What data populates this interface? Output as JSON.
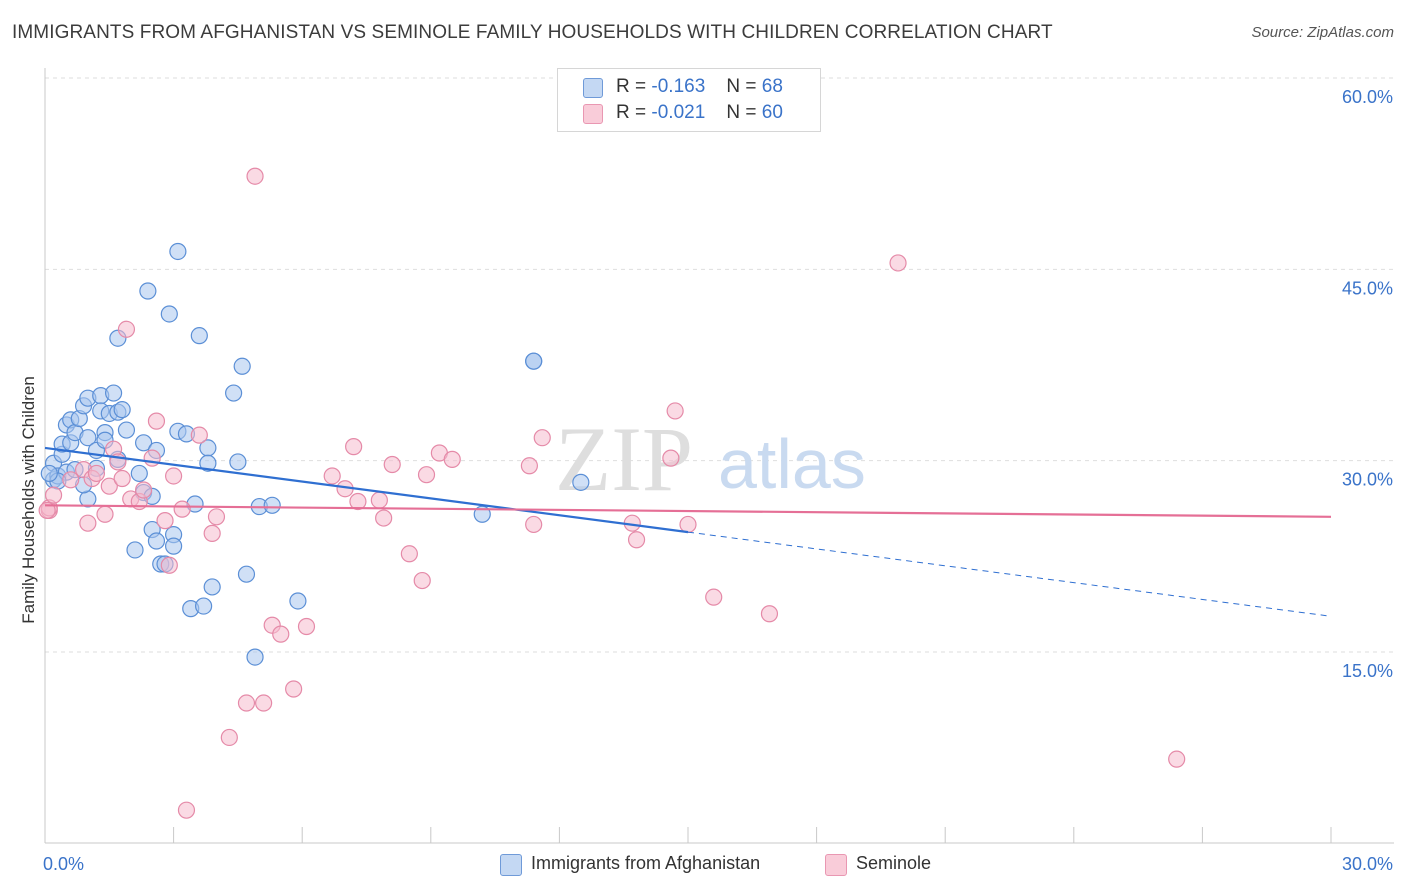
{
  "title": "IMMIGRANTS FROM AFGHANISTAN VS SEMINOLE FAMILY HOUSEHOLDS WITH CHILDREN CORRELATION CHART",
  "source": "Source: ZipAtlas.com",
  "watermark": {
    "zip": "ZIP",
    "atlas": "atlas"
  },
  "legend": {
    "series1": {
      "r_label": "R =",
      "r_value": "-0.163",
      "n_label": "N =",
      "n_value": "68"
    },
    "series2": {
      "r_label": "R =",
      "r_value": "-0.021",
      "n_label": "N =",
      "n_value": "60"
    }
  },
  "colors": {
    "blue_fill": "#a9c7ef",
    "blue_stroke": "#5b8fd6",
    "blue_line": "#2f6fd1",
    "pink_fill": "#f6bccd",
    "pink_stroke": "#e58aa8",
    "pink_line": "#e56f96",
    "tick_label": "#3a73c9"
  },
  "chart_data": {
    "type": "scatter",
    "title": "IMMIGRANTS FROM AFGHANISTAN VS SEMINOLE FAMILY HOUSEHOLDS WITH CHILDREN CORRELATION CHART",
    "xlabel": "",
    "ylabel": "Family Households with Children",
    "x_tick_labels": [
      "0.0%",
      "30.0%"
    ],
    "y_tick_labels": [
      "15.0%",
      "30.0%",
      "45.0%",
      "60.0%"
    ],
    "y_ticks": [
      15,
      30,
      45,
      60
    ],
    "xlim": [
      0,
      30
    ],
    "ylim": [
      0,
      62
    ],
    "grid": true,
    "legend_placement": "top-center",
    "series": [
      {
        "name": "Immigrants from Afghanistan",
        "color": "#a9c7ef",
        "trend": {
          "x": [
            0,
            15
          ],
          "y": [
            31.0,
            24.4
          ],
          "dashed_to_x": 30,
          "dashed_to_y": 17.8
        },
        "points": [
          [
            0.2,
            28.5
          ],
          [
            0.2,
            29.8
          ],
          [
            0.3,
            28.8
          ],
          [
            0.4,
            30.5
          ],
          [
            0.4,
            31.3
          ],
          [
            0.5,
            32.8
          ],
          [
            0.6,
            33.2
          ],
          [
            0.5,
            29.1
          ],
          [
            0.6,
            31.4
          ],
          [
            0.7,
            32.2
          ],
          [
            0.7,
            29.3
          ],
          [
            0.8,
            33.3
          ],
          [
            0.9,
            34.3
          ],
          [
            1.0,
            34.9
          ],
          [
            1.0,
            31.8
          ],
          [
            1.0,
            27.0
          ],
          [
            1.2,
            30.8
          ],
          [
            1.2,
            29.4
          ],
          [
            1.3,
            35.1
          ],
          [
            1.3,
            33.9
          ],
          [
            1.4,
            32.2
          ],
          [
            1.4,
            31.6
          ],
          [
            1.5,
            33.7
          ],
          [
            1.6,
            35.3
          ],
          [
            1.7,
            39.6
          ],
          [
            1.7,
            33.8
          ],
          [
            1.7,
            30.1
          ],
          [
            1.8,
            34.0
          ],
          [
            1.9,
            32.4
          ],
          [
            2.1,
            23.0
          ],
          [
            2.2,
            29.0
          ],
          [
            2.3,
            31.4
          ],
          [
            2.3,
            27.5
          ],
          [
            2.4,
            43.3
          ],
          [
            2.5,
            24.6
          ],
          [
            2.5,
            27.2
          ],
          [
            2.6,
            23.7
          ],
          [
            2.6,
            30.8
          ],
          [
            2.7,
            21.9
          ],
          [
            2.8,
            21.9
          ],
          [
            2.9,
            41.5
          ],
          [
            3.0,
            24.2
          ],
          [
            3.0,
            23.3
          ],
          [
            3.1,
            32.3
          ],
          [
            3.1,
            46.4
          ],
          [
            3.3,
            32.1
          ],
          [
            3.4,
            18.4
          ],
          [
            3.5,
            26.6
          ],
          [
            3.6,
            39.8
          ],
          [
            3.7,
            18.6
          ],
          [
            3.8,
            31.0
          ],
          [
            3.8,
            29.8
          ],
          [
            3.9,
            20.1
          ],
          [
            4.4,
            35.3
          ],
          [
            4.5,
            29.9
          ],
          [
            4.6,
            37.4
          ],
          [
            4.7,
            21.1
          ],
          [
            4.9,
            14.6
          ],
          [
            5.0,
            26.4
          ],
          [
            5.3,
            26.5
          ],
          [
            5.9,
            19.0
          ],
          [
            10.2,
            25.8
          ],
          [
            11.4,
            37.8
          ],
          [
            11.4,
            37.8
          ],
          [
            12.5,
            28.3
          ],
          [
            0.3,
            28.4
          ],
          [
            0.9,
            28.1
          ],
          [
            0.1,
            29.0
          ]
        ]
      },
      {
        "name": "Seminole",
        "color": "#f6bccd",
        "trend": {
          "x": [
            0,
            30
          ],
          "y": [
            26.5,
            25.6
          ]
        },
        "points": [
          [
            0.1,
            26.1
          ],
          [
            0.1,
            26.3
          ],
          [
            0.2,
            27.3
          ],
          [
            0.6,
            28.5
          ],
          [
            0.9,
            29.3
          ],
          [
            1.0,
            25.1
          ],
          [
            1.1,
            28.6
          ],
          [
            1.2,
            29.0
          ],
          [
            1.4,
            25.8
          ],
          [
            1.5,
            28.0
          ],
          [
            1.6,
            30.9
          ],
          [
            1.7,
            29.9
          ],
          [
            1.8,
            28.6
          ],
          [
            1.9,
            40.3
          ],
          [
            2.0,
            27.0
          ],
          [
            2.2,
            26.8
          ],
          [
            2.3,
            27.7
          ],
          [
            2.5,
            30.2
          ],
          [
            2.6,
            33.1
          ],
          [
            2.8,
            25.3
          ],
          [
            2.9,
            21.8
          ],
          [
            3.0,
            28.8
          ],
          [
            3.2,
            26.2
          ],
          [
            3.3,
            2.6
          ],
          [
            3.6,
            32.0
          ],
          [
            3.9,
            24.3
          ],
          [
            4.0,
            25.6
          ],
          [
            4.3,
            8.3
          ],
          [
            4.7,
            11.0
          ],
          [
            4.9,
            52.3
          ],
          [
            5.1,
            11.0
          ],
          [
            5.3,
            17.1
          ],
          [
            5.5,
            16.4
          ],
          [
            5.8,
            12.1
          ],
          [
            6.1,
            17.0
          ],
          [
            6.7,
            28.8
          ],
          [
            7.0,
            27.8
          ],
          [
            7.2,
            31.1
          ],
          [
            7.3,
            26.8
          ],
          [
            7.8,
            26.9
          ],
          [
            7.9,
            25.5
          ],
          [
            8.1,
            29.7
          ],
          [
            8.5,
            22.7
          ],
          [
            8.8,
            20.6
          ],
          [
            8.9,
            28.9
          ],
          [
            9.2,
            30.6
          ],
          [
            9.5,
            30.1
          ],
          [
            11.3,
            29.6
          ],
          [
            11.4,
            25.0
          ],
          [
            11.6,
            31.8
          ],
          [
            13.7,
            25.1
          ],
          [
            13.8,
            23.8
          ],
          [
            14.6,
            30.2
          ],
          [
            14.7,
            33.9
          ],
          [
            15.0,
            25.0
          ],
          [
            15.6,
            19.3
          ],
          [
            16.9,
            18.0
          ],
          [
            19.9,
            45.5
          ],
          [
            26.4,
            6.6
          ],
          [
            0.05,
            26.1
          ]
        ]
      }
    ]
  }
}
